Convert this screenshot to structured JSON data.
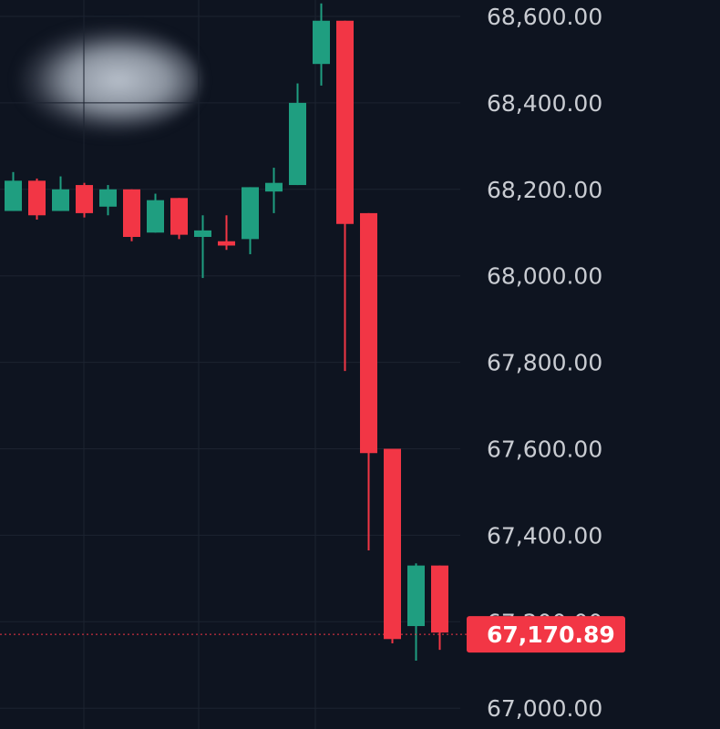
{
  "chart_data": {
    "type": "candlestick",
    "y_axis": {
      "ticks": [
        68600,
        68400,
        68200,
        68000,
        67800,
        67600,
        67400,
        67200,
        67000
      ],
      "tick_labels": [
        "68,600.00",
        "68,400.00",
        "68,200.00",
        "68,000.00",
        "67,800.00",
        "67,600.00",
        "67,400.00",
        "67,200.00",
        "67,000.00"
      ],
      "ylim": [
        66990,
        68630
      ]
    },
    "grid": true,
    "last_price": 67170.89,
    "last_price_label": "67,170.89",
    "colors": {
      "background": "#0e1420",
      "up": "#1f9e80",
      "down": "#f23645",
      "grid": "#1c2330",
      "tick_text": "#c9ccd2",
      "price_tag": "#f23645"
    },
    "candles": [
      {
        "open": 68150,
        "high": 68240,
        "low": 68150,
        "close": 68220
      },
      {
        "open": 68220,
        "high": 68225,
        "low": 68130,
        "close": 68140
      },
      {
        "open": 68150,
        "high": 68230,
        "low": 68150,
        "close": 68200
      },
      {
        "open": 68210,
        "high": 68215,
        "low": 68135,
        "close": 68145
      },
      {
        "open": 68160,
        "high": 68210,
        "low": 68140,
        "close": 68200
      },
      {
        "open": 68200,
        "high": 68200,
        "low": 68080,
        "close": 68090
      },
      {
        "open": 68100,
        "high": 68190,
        "low": 68100,
        "close": 68175
      },
      {
        "open": 68180,
        "high": 68180,
        "low": 68085,
        "close": 68095
      },
      {
        "open": 68090,
        "high": 68140,
        "low": 67995,
        "close": 68105
      },
      {
        "open": 68080,
        "high": 68140,
        "low": 68060,
        "close": 68070
      },
      {
        "open": 68085,
        "high": 68205,
        "low": 68050,
        "close": 68205
      },
      {
        "open": 68195,
        "high": 68250,
        "low": 68145,
        "close": 68215
      },
      {
        "open": 68210,
        "high": 68445,
        "low": 68210,
        "close": 68400
      },
      {
        "open": 68490,
        "high": 68630,
        "low": 68440,
        "close": 68590
      },
      {
        "open": 68590,
        "high": 68590,
        "low": 67780,
        "close": 68120
      },
      {
        "open": 68145,
        "high": 68145,
        "low": 67365,
        "close": 67590
      },
      {
        "open": 67600,
        "high": 67600,
        "low": 67150,
        "close": 67160
      },
      {
        "open": 67190,
        "high": 67335,
        "low": 67110,
        "close": 67330
      },
      {
        "open": 67330,
        "high": 67330,
        "low": 67135,
        "close": 67175
      }
    ]
  }
}
